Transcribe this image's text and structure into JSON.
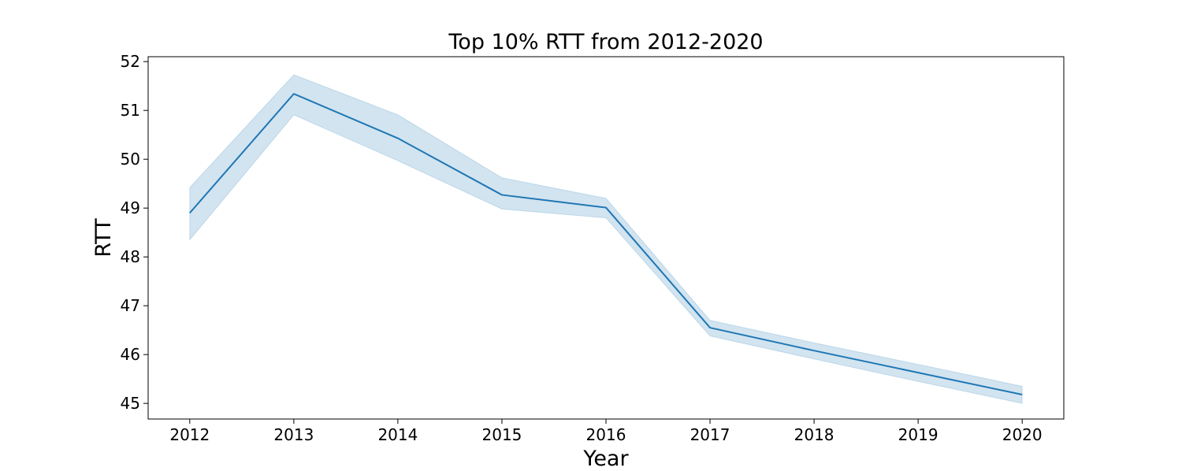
{
  "chart_data": {
    "type": "line",
    "title": "Top 10% RTT from 2012-2020",
    "xlabel": "Year",
    "ylabel": "RTT",
    "x": [
      2012,
      2013,
      2014,
      2015,
      2016,
      2017,
      2018,
      2019,
      2020
    ],
    "x_tick_labels": [
      "2012",
      "2013",
      "2014",
      "2015",
      "2016",
      "2017",
      "2018",
      "2019",
      "2020"
    ],
    "y_ticks": [
      45,
      46,
      47,
      48,
      49,
      50,
      51,
      52
    ],
    "y_tick_labels": [
      "45",
      "46",
      "47",
      "48",
      "49",
      "50",
      "51",
      "52"
    ],
    "xlim": [
      2011.6,
      2020.4
    ],
    "ylim": [
      44.68,
      52.1
    ],
    "grid": false,
    "series": [
      {
        "values": [
          48.9,
          51.34,
          50.43,
          49.27,
          49.01,
          46.55,
          46.08,
          45.63,
          45.18
        ],
        "ci_lower": [
          48.35,
          50.91,
          49.97,
          48.98,
          48.8,
          46.38,
          45.91,
          45.45,
          45.0
        ],
        "ci_upper": [
          49.42,
          51.73,
          50.91,
          49.62,
          49.2,
          46.7,
          46.24,
          45.8,
          45.35
        ],
        "color": "#1f77b4",
        "band_color": "#1f77b4"
      }
    ]
  }
}
